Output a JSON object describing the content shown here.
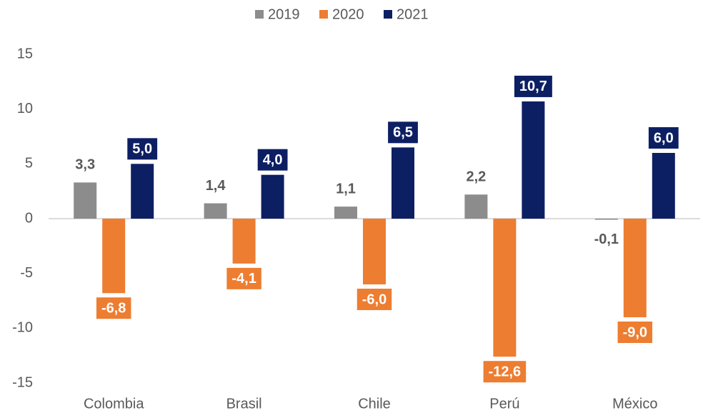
{
  "chart_data": {
    "type": "bar",
    "categories": [
      "Colombia",
      "Brasil",
      "Chile",
      "Perú",
      "México"
    ],
    "series": [
      {
        "name": "2019",
        "color": "#8c8c8c",
        "values": [
          3.3,
          1.4,
          1.1,
          2.2,
          -0.1
        ],
        "value_labels": [
          "3,3",
          "1,4",
          "1,1",
          "2,2",
          "-0,1"
        ]
      },
      {
        "name": "2020",
        "color": "#ed7d31",
        "values": [
          -6.8,
          -4.1,
          -6.0,
          -12.6,
          -9.0
        ],
        "value_labels": [
          "-6,8",
          "-4,1",
          "-6,0",
          "-12,6",
          "-9,0"
        ]
      },
      {
        "name": "2021",
        "color": "#0d1f63",
        "values": [
          5.0,
          4.0,
          6.5,
          10.7,
          6.0
        ],
        "value_labels": [
          "5,0",
          "4,0",
          "6,5",
          "10,7",
          "6,0"
        ]
      }
    ],
    "ylim": [
      -15,
      15
    ],
    "yticks": [
      15,
      10,
      5,
      0,
      -5,
      -10,
      -15
    ],
    "legend": "top"
  }
}
